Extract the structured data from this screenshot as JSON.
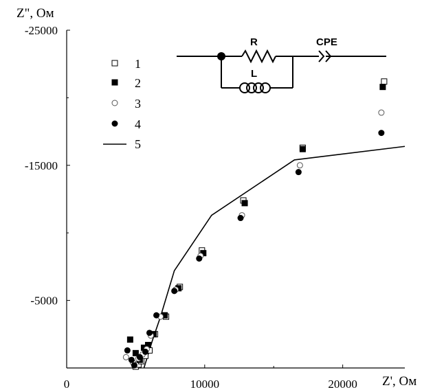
{
  "chart_data": {
    "type": "scatter",
    "title": "",
    "xlabel": "Z', Ом",
    "ylabel": "Z\", Ом",
    "xlim": [
      0,
      24500
    ],
    "ylim": [
      0,
      -25000
    ],
    "x_ticks": [
      {
        "value": 0,
        "label": "0"
      },
      {
        "value": 10000,
        "label": "10000"
      },
      {
        "value": 20000,
        "label": "20000"
      }
    ],
    "y_ticks": [
      {
        "value": -5000,
        "label": "-5000"
      },
      {
        "value": -15000,
        "label": "-15000"
      },
      {
        "value": -25000,
        "label": "-25000"
      }
    ],
    "grid": false,
    "legend_position": "top-left",
    "series": [
      {
        "name": "1",
        "marker": "open-square",
        "x": [
          5000,
          5200,
          5400,
          5700,
          6000,
          6400,
          7200,
          8200,
          9800,
          12800,
          17100,
          23000
        ],
        "y": [
          -100,
          -250,
          -500,
          -900,
          -1300,
          -2500,
          -3800,
          -6000,
          -8700,
          -12400,
          -16300,
          -21200
        ]
      },
      {
        "name": "2",
        "marker": "filled-square",
        "x": [
          4600,
          5000,
          5300,
          5600,
          5900,
          6300,
          7100,
          8100,
          9900,
          12900,
          17100,
          22900
        ],
        "y": [
          -2100,
          -1100,
          -600,
          -1500,
          -1700,
          -2500,
          -3900,
          -5900,
          -8500,
          -12200,
          -16200,
          -20800
        ]
      },
      {
        "name": "3",
        "marker": "open-circle",
        "x": [
          4300,
          4800,
          5200,
          5500,
          5800,
          6100,
          6800,
          7900,
          9700,
          12700,
          16900,
          22800
        ],
        "y": [
          -800,
          -400,
          -700,
          -1000,
          -1400,
          -2400,
          -3800,
          -5800,
          -8300,
          -11300,
          -15000,
          -18900
        ]
      },
      {
        "name": "4",
        "marker": "filled-circle",
        "x": [
          4400,
          4700,
          4900,
          5300,
          5700,
          6000,
          6500,
          7800,
          9600,
          12600,
          16800,
          22800
        ],
        "y": [
          -1300,
          -600,
          -200,
          -800,
          -1200,
          -2600,
          -3900,
          -5700,
          -8100,
          -11100,
          -14500,
          -17400
        ]
      },
      {
        "name": "5",
        "marker": "line",
        "x": [
          5600,
          6200,
          6800,
          7800,
          10500,
          16500,
          24500
        ],
        "y": [
          0,
          -2000,
          -3800,
          -7200,
          -11300,
          -15400,
          -16400
        ]
      }
    ],
    "inset_circuit": {
      "labels": {
        "R": "R",
        "L": "L",
        "CPE": "CPE"
      }
    }
  }
}
